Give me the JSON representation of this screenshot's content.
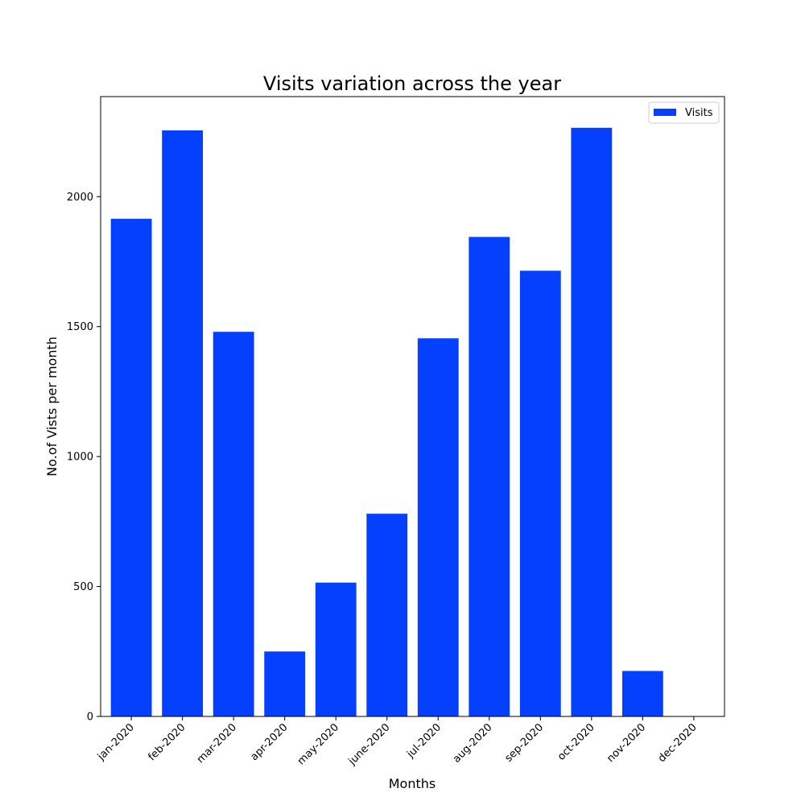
{
  "chart_data": {
    "type": "bar",
    "title": "Visits variation across the year",
    "xlabel": "Months",
    "ylabel": "No.of Vists per month",
    "categories": [
      "jan-2020",
      "feb-2020",
      "mar-2020",
      "apr-2020",
      "may-2020",
      "june-2020",
      "jul-2020",
      "aug-2020",
      "sep-2020",
      "oct-2020",
      "nov-2020",
      "dec-2020"
    ],
    "series": [
      {
        "name": "Visits",
        "values": [
          1915,
          2255,
          1480,
          250,
          515,
          780,
          1455,
          1845,
          1715,
          2265,
          175,
          0
        ]
      }
    ],
    "ylim": [
      0,
      2385
    ],
    "yticks": [
      0,
      500,
      1000,
      1500,
      2000
    ],
    "grid": false,
    "legend_position": "top-right",
    "bar_color": "#0540fe"
  }
}
